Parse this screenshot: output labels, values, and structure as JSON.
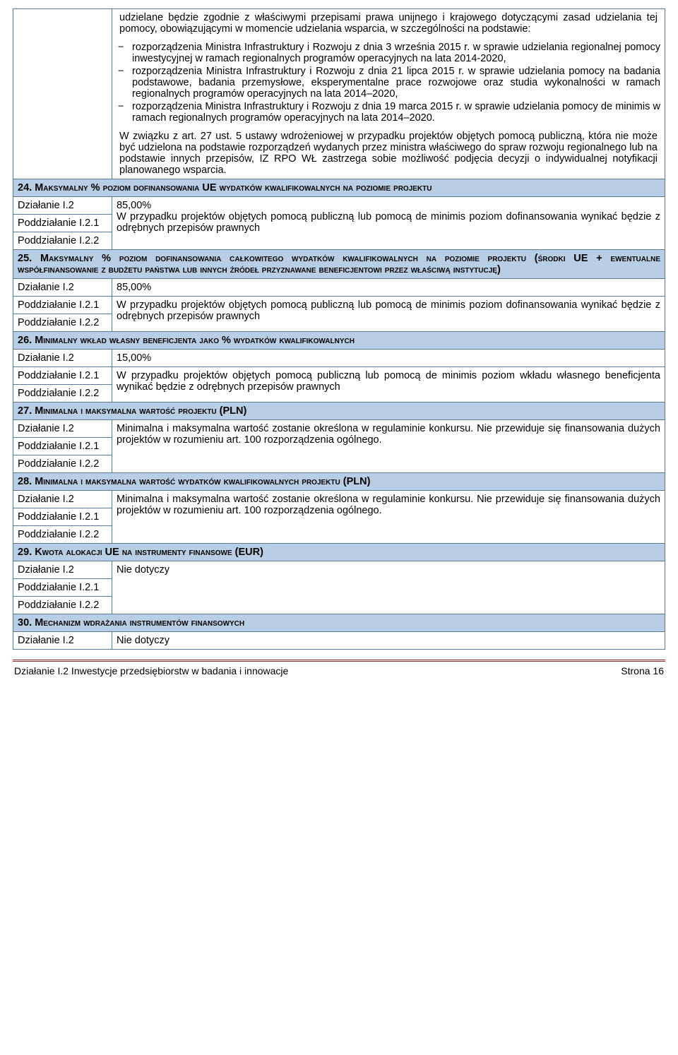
{
  "intro": "udzielane będzie zgodnie z właściwymi przepisami prawa unijnego i krajowego dotyczącymi zasad udzielania tej pomocy, obowiązującymi w momencie udzielania wsparcia, w szczególności na podstawie:",
  "bullets": [
    "rozporządzenia Ministra Infrastruktury i Rozwoju z dnia 3 września 2015 r. w sprawie udzielania regionalnej pomocy inwestycyjnej w ramach regionalnych programów operacyjnych na lata 2014-2020,",
    "rozporządzenia Ministra Infrastruktury i Rozwoju z dnia 21 lipca 2015 r. w sprawie udzielania pomocy na badania podstawowe, badania przemysłowe, eksperymentalne prace rozwojowe oraz studia wykonalności w ramach regionalnych programów operacyjnych na lata 2014–2020,",
    "rozporządzenia Ministra Infrastruktury i Rozwoju z dnia 19 marca 2015 r. w sprawie udzielania pomocy de minimis w ramach regionalnych programów operacyjnych na lata 2014–2020."
  ],
  "para2": "W związku z art. 27 ust. 5 ustawy wdrożeniowej w przypadku projektów objętych pomocą publiczną, która nie może być udzielona na podstawie rozporządzeń wydanych przez ministra właściwego do spraw rozwoju regionalnego lub na podstawie innych przepisów, IZ RPO WŁ zastrzega sobie możliwość podjęcia decyzji o indywidualnej notyfikacji planowanego wsparcia.",
  "labels": {
    "dzialanie": "Działanie I.2",
    "poddz1": "Poddziałanie I.2.1",
    "poddz2": "Poddziałanie I.2.2",
    "nie_dotyczy": "Nie dotyczy"
  },
  "s24": {
    "num": "24.",
    "title": "Maksymalny % poziom dofinansowania UE wydatków kwalifikowalnych na poziomie projektu",
    "val": "85,00%\nW przypadku projektów objętych pomocą publiczną lub pomocą de minimis poziom dofinansowania wynikać będzie z odrębnych przepisów prawnych"
  },
  "s25": {
    "num": "25.",
    "title": "Maksymalny % poziom dofinansowania całkowitego wydatków kwalifikowalnych na poziomie projektu (środki UE + ewentualne współfinansowanie z budżetu państwa lub innych źródeł przyznawane beneficjentowi przez właściwą instytucję)",
    "r1": "85,00%",
    "r23": "W przypadku projektów objętych pomocą publiczną lub pomocą de minimis poziom dofinansowania wynikać będzie z odrębnych przepisów prawnych"
  },
  "s26": {
    "num": "26.",
    "title": "Minimalny wkład własny beneficjenta jako % wydatków kwalifikowalnych",
    "r1": "15,00%",
    "r23": "W przypadku projektów objętych pomocą publiczną lub pomocą de minimis poziom wkładu własnego beneficjenta wynikać będzie z odrębnych przepisów prawnych"
  },
  "s27": {
    "num": "27.",
    "title": "Minimalna i maksymalna wartość projektu (PLN)",
    "val": "Minimalna i maksymalna wartość zostanie określona w regulaminie konkursu. Nie przewiduje się finansowania dużych projektów w rozumieniu art. 100 rozporządzenia ogólnego."
  },
  "s28": {
    "num": "28.",
    "title": "Minimalna i maksymalna wartość wydatków kwalifikowalnych projektu (PLN)",
    "val": "Minimalna i maksymalna wartość zostanie określona w regulaminie konkursu. Nie przewiduje się finansowania dużych projektów w rozumieniu art. 100 rozporządzenia ogólnego."
  },
  "s29": {
    "num": "29.",
    "title": "Kwota alokacji UE na instrumenty finansowe (EUR)"
  },
  "s30": {
    "num": "30.",
    "title": "Mechanizm wdrażania instrumentów finansowych"
  },
  "footer": {
    "left": "Działanie I.2 Inwestycje przedsiębiorstw w badania i innowacje",
    "right": "Strona 16"
  }
}
